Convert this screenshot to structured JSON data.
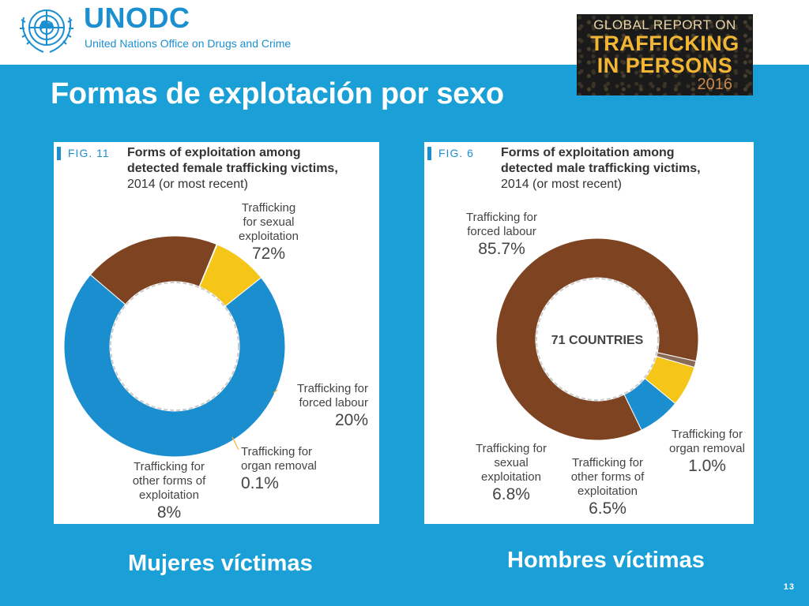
{
  "header": {
    "org_acronym": "UNODC",
    "org_name": "United Nations Office on Drugs and Crime",
    "report": {
      "line1": "GLOBAL REPORT ON",
      "line2": "TRAFFICKING",
      "line3": "IN PERSONS",
      "year": "2016"
    }
  },
  "slide": {
    "title": "Formas de explotación por sexo",
    "page_number": "13"
  },
  "colors": {
    "background": "#1aa0d6",
    "sexual": "#1b8ed0",
    "labour": "#7e4321",
    "other": "#f5c518",
    "organ": "#8a6b57"
  },
  "charts": {
    "female": {
      "fig_label": "FIG. 11",
      "title_lines": [
        "Forms of exploitation among",
        "detected female trafficking victims,"
      ],
      "subtitle": "2014 (or most recent)",
      "caption": "Mujeres víctimas"
    },
    "male": {
      "fig_label": "FIG. 6",
      "title_lines": [
        "Forms of exploitation among",
        "detected male trafficking victims,"
      ],
      "subtitle": "2014 (or most recent)",
      "center_label": "71 COUNTRIES",
      "caption": "Hombres víctimas"
    }
  },
  "chart_data": [
    {
      "type": "pie",
      "variant": "donut",
      "title": "Forms of exploitation among detected female trafficking victims, 2014 (or most recent)",
      "slices": [
        {
          "label": "Trafficking for sexual exploitation",
          "label_lines": [
            "Trafficking",
            "for sexual",
            "exploitation"
          ],
          "value": 72,
          "value_text": "72%",
          "color": "#1b8ed0"
        },
        {
          "label": "Trafficking for forced labour",
          "label_lines": [
            "Trafficking for",
            "forced labour"
          ],
          "value": 20,
          "value_text": "20%",
          "color": "#7e4321"
        },
        {
          "label": "Trafficking for organ removal",
          "label_lines": [
            "Trafficking for",
            "organ removal"
          ],
          "value": 0.1,
          "value_text": "0.1%",
          "color": "#8a6b57"
        },
        {
          "label": "Trafficking for other forms of exploitation",
          "label_lines": [
            "Trafficking for",
            "other forms of",
            "exploitation"
          ],
          "value": 8,
          "value_text": "8%",
          "color": "#f5c518"
        }
      ]
    },
    {
      "type": "pie",
      "variant": "donut",
      "title": "Forms of exploitation among detected male trafficking victims, 2014 (or most recent)",
      "center_label": "71 COUNTRIES",
      "slices": [
        {
          "label": "Trafficking for forced labour",
          "label_lines": [
            "Trafficking for",
            "forced labour"
          ],
          "value": 85.7,
          "value_text": "85.7%",
          "color": "#7e4321"
        },
        {
          "label": "Trafficking for organ removal",
          "label_lines": [
            "Trafficking for",
            "organ removal"
          ],
          "value": 1.0,
          "value_text": "1.0%",
          "color": "#8a6b57"
        },
        {
          "label": "Trafficking for other forms of exploitation",
          "label_lines": [
            "Trafficking for",
            "other forms of",
            "exploitation"
          ],
          "value": 6.5,
          "value_text": "6.5%",
          "color": "#f5c518"
        },
        {
          "label": "Trafficking for sexual exploitation",
          "label_lines": [
            "Trafficking for",
            "sexual",
            "exploitation"
          ],
          "value": 6.8,
          "value_text": "6.8%",
          "color": "#1b8ed0"
        }
      ]
    }
  ]
}
